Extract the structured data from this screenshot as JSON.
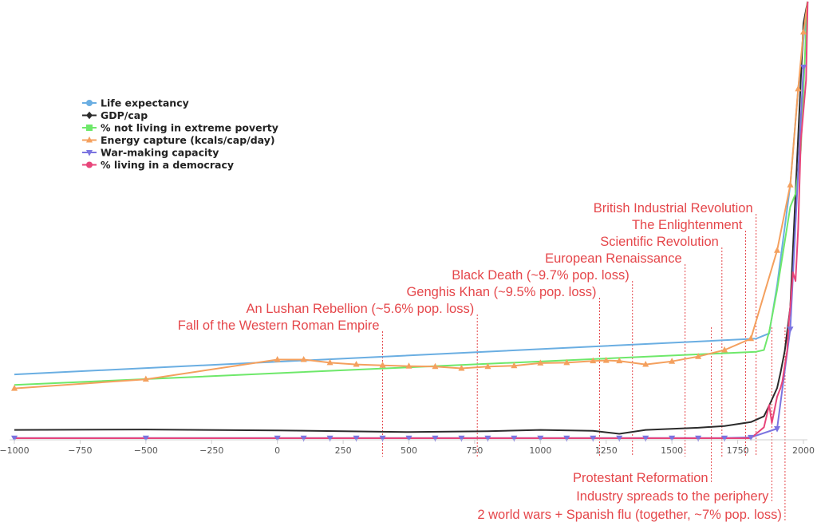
{
  "chart_data": {
    "type": "line",
    "title": "",
    "xlabel": "",
    "ylabel": "",
    "xlim": [
      -1000,
      2020
    ],
    "ylim": [
      0,
      100
    ],
    "x_ticks": [
      -1000,
      -750,
      -500,
      -250,
      0,
      250,
      500,
      750,
      1000,
      1250,
      1500,
      1750,
      2000
    ],
    "y_ticks": [],
    "grid": false,
    "legend_position": "top-left",
    "series": [
      {
        "name": "Life expectancy",
        "color": "#6aaee2",
        "marker": "circle",
        "show_markers": false,
        "points": [
          [
            -1000,
            14.6
          ],
          [
            1820,
            22.8
          ],
          [
            1870,
            24
          ],
          [
            1900,
            35
          ],
          [
            1950,
            58
          ],
          [
            1980,
            80
          ],
          [
            2016,
            100
          ]
        ]
      },
      {
        "name": "GDP/cap",
        "color": "#2b2b2b",
        "marker": "diamond",
        "show_markers": false,
        "points": [
          [
            -1000,
            1.9
          ],
          [
            -500,
            2
          ],
          [
            0,
            1.8
          ],
          [
            500,
            1.4
          ],
          [
            800,
            1.6
          ],
          [
            1000,
            1.9
          ],
          [
            1200,
            1.7
          ],
          [
            1300,
            1.0
          ],
          [
            1400,
            1.9
          ],
          [
            1600,
            2.4
          ],
          [
            1700,
            2.8
          ],
          [
            1800,
            3.7
          ],
          [
            1850,
            5
          ],
          [
            1870,
            7.5
          ],
          [
            1900,
            11.5
          ],
          [
            1913,
            15
          ],
          [
            1929,
            20
          ],
          [
            1950,
            30
          ],
          [
            1973,
            60
          ],
          [
            2000,
            95
          ],
          [
            2016,
            100
          ]
        ]
      },
      {
        "name": "% not living in extreme poverty",
        "color": "#6ee86a",
        "marker": "square",
        "show_markers": false,
        "points": [
          [
            -1000,
            12.2
          ],
          [
            1820,
            19.8
          ],
          [
            1850,
            20.2
          ],
          [
            1870,
            24.4
          ],
          [
            1900,
            34
          ],
          [
            1950,
            53
          ],
          [
            1970,
            56
          ],
          [
            1990,
            66
          ],
          [
            2015,
            100
          ]
        ]
      },
      {
        "name": "Energy capture (kcals/cap/day)",
        "color": "#f4a05e",
        "marker": "triangle",
        "show_markers": true,
        "points": [
          [
            -1000,
            11.4
          ],
          [
            -500,
            13.5
          ],
          [
            0,
            18
          ],
          [
            100,
            18
          ],
          [
            200,
            17.3
          ],
          [
            300,
            16.9
          ],
          [
            400,
            16.7
          ],
          [
            500,
            16.5
          ],
          [
            600,
            16.4
          ],
          [
            700,
            16.0
          ],
          [
            800,
            16.4
          ],
          [
            900,
            16.6
          ],
          [
            1000,
            17.2
          ],
          [
            1100,
            17.3
          ],
          [
            1200,
            17.7
          ],
          [
            1250,
            17.8
          ],
          [
            1300,
            17.7
          ],
          [
            1400,
            16.9
          ],
          [
            1500,
            17.6
          ],
          [
            1600,
            18.7
          ],
          [
            1700,
            20.2
          ],
          [
            1800,
            22.8
          ],
          [
            1900,
            43
          ],
          [
            1950,
            58
          ],
          [
            1980,
            80
          ],
          [
            2000,
            93
          ],
          [
            2016,
            100
          ]
        ]
      },
      {
        "name": "War-making capacity",
        "color": "#7b74e0",
        "marker": "triangle-down",
        "show_markers": true,
        "points": [
          [
            -1000,
            0.05
          ],
          [
            -500,
            0.05
          ],
          [
            0,
            0.05
          ],
          [
            100,
            0.05
          ],
          [
            200,
            0.05
          ],
          [
            300,
            0.05
          ],
          [
            400,
            0.05
          ],
          [
            500,
            0.05
          ],
          [
            600,
            0.05
          ],
          [
            700,
            0.05
          ],
          [
            800,
            0.05
          ],
          [
            900,
            0.05
          ],
          [
            1000,
            0.05
          ],
          [
            1100,
            0.05
          ],
          [
            1200,
            0.05
          ],
          [
            1300,
            0.05
          ],
          [
            1400,
            0.05
          ],
          [
            1500,
            0.05
          ],
          [
            1600,
            0.05
          ],
          [
            1700,
            0.05
          ],
          [
            1800,
            0.2
          ],
          [
            1900,
            2.2
          ],
          [
            1950,
            25
          ],
          [
            2000,
            85
          ]
        ]
      },
      {
        "name": "% living in a democracy",
        "color": "#e8457a",
        "marker": "circle",
        "show_markers": false,
        "points": [
          [
            -1000,
            0
          ],
          [
            1800,
            0
          ],
          [
            1820,
            1
          ],
          [
            1850,
            2.5
          ],
          [
            1870,
            7.6
          ],
          [
            1880,
            3.5
          ],
          [
            1900,
            9.5
          ],
          [
            1913,
            11.5
          ],
          [
            1920,
            13
          ],
          [
            1930,
            17
          ],
          [
            1938,
            20
          ],
          [
            1945,
            27
          ],
          [
            1950,
            30
          ],
          [
            1955,
            34
          ],
          [
            1960,
            38
          ],
          [
            1970,
            36
          ],
          [
            1980,
            48
          ],
          [
            1990,
            68
          ],
          [
            2000,
            75
          ],
          [
            2010,
            82
          ],
          [
            2016,
            100
          ]
        ]
      }
    ],
    "annotations": [
      {
        "label": "British Industrial Revolution",
        "x": 1820,
        "position": "above"
      },
      {
        "label": "The Enlightenment",
        "x": 1780,
        "position": "above"
      },
      {
        "label": "Scientific Revolution",
        "x": 1690,
        "position": "above"
      },
      {
        "label": "European Renaissance",
        "x": 1550,
        "position": "above"
      },
      {
        "label": "Black Death (~9.7% pop. loss)",
        "x": 1350,
        "position": "above"
      },
      {
        "label": "Genghis Khan (~9.5% pop. loss)",
        "x": 1225,
        "position": "above"
      },
      {
        "label": "An Lushan Rebellion (~5.6% pop. loss)",
        "x": 760,
        "position": "above"
      },
      {
        "label": "Fall of the Western Roman Empire",
        "x": 400,
        "position": "above"
      },
      {
        "label": "Protestant Reformation",
        "x": 1650,
        "position": "below"
      },
      {
        "label": "Industry spreads to the periphery",
        "x": 1880,
        "position": "below"
      },
      {
        "label": "2 world wars + Spanish flu (together, ~7%  pop. loss)",
        "x": 1930,
        "position": "below"
      }
    ]
  }
}
